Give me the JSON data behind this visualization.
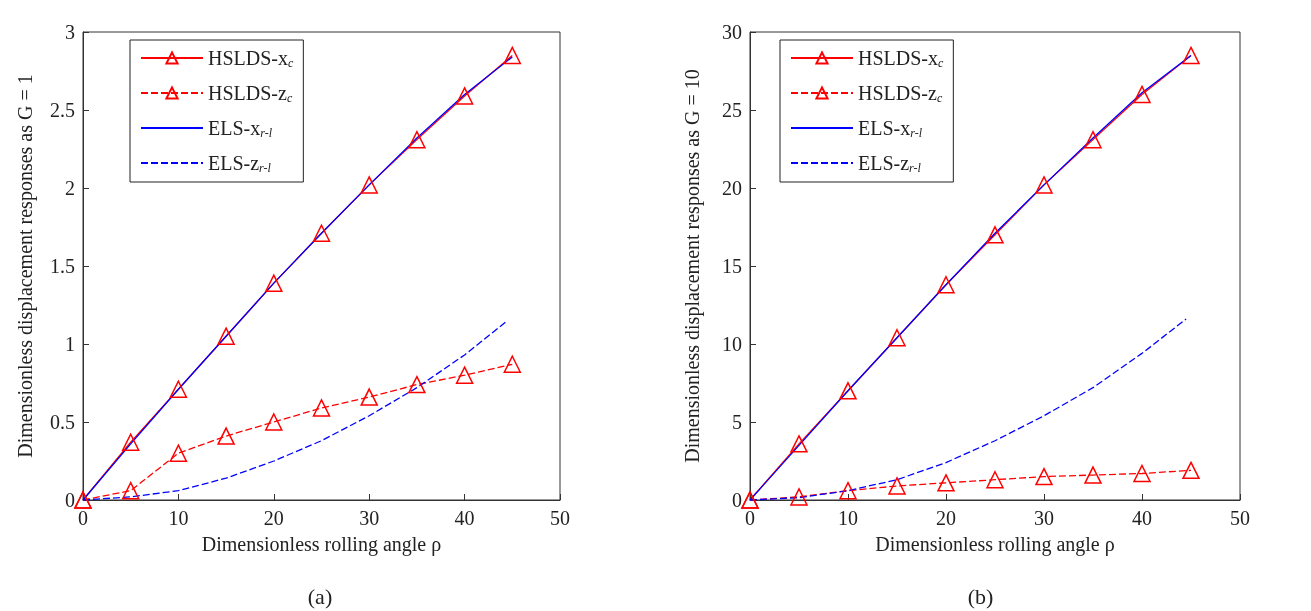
{
  "chart_data": [
    {
      "type": "line",
      "xlabel": "Dimensionless rolling angle ρ",
      "ylabel": "Dimensionless displacement responses as G = 1",
      "annotations": [
        "(a)"
      ],
      "xlim": [
        0,
        50
      ],
      "xticks": [
        0,
        10,
        20,
        30,
        40,
        50
      ],
      "ylim": [
        0,
        3
      ],
      "yticks": [
        0,
        0.5,
        1,
        1.5,
        2,
        2.5,
        3
      ],
      "grid": false,
      "legend": "top left",
      "series": [
        {
          "name": "HSLDS-x$_{c}$",
          "color": "#ff0000",
          "marker": "triangle",
          "line_style": "solid",
          "x": [
            0,
            5,
            10,
            15,
            20,
            25,
            30,
            35,
            40,
            45
          ],
          "values": [
            0,
            0.37,
            0.71,
            1.05,
            1.39,
            1.71,
            2.02,
            2.31,
            2.59,
            2.85
          ]
        },
        {
          "name": "HSLDS-z$_{c}$",
          "color": "#ff0000",
          "marker": "triangle",
          "line_style": "dashed",
          "x": [
            0,
            5,
            10,
            15,
            20,
            25,
            30,
            35,
            40,
            45
          ],
          "values": [
            0,
            0.06,
            0.3,
            0.41,
            0.5,
            0.59,
            0.66,
            0.74,
            0.8,
            0.87
          ]
        },
        {
          "name": "ELS-x$_{r-l}$",
          "color": "#0000ff",
          "marker": "none",
          "line_style": "solid",
          "x": [
            0,
            5,
            10,
            15,
            20,
            25,
            30,
            35,
            40,
            45
          ],
          "values": [
            0,
            0.36,
            0.71,
            1.05,
            1.39,
            1.71,
            2.02,
            2.32,
            2.6,
            2.84
          ]
        },
        {
          "name": "ELS-z$_{r-l}$",
          "color": "#0000ff",
          "marker": "none",
          "line_style": "dashed",
          "x": [
            0,
            5,
            10,
            15,
            20,
            25,
            30,
            35,
            40,
            44.5
          ],
          "values": [
            0,
            0.02,
            0.06,
            0.14,
            0.25,
            0.38,
            0.54,
            0.72,
            0.93,
            1.15
          ]
        }
      ]
    },
    {
      "type": "line",
      "xlabel": "Dimensionless rolling angle ρ",
      "ylabel": "Dimensionless displacement responses as G = 10",
      "annotations": [
        "(b)"
      ],
      "xlim": [
        0,
        50
      ],
      "xticks": [
        0,
        10,
        20,
        30,
        40,
        50
      ],
      "ylim": [
        0,
        30
      ],
      "yticks": [
        0,
        5,
        10,
        15,
        20,
        25,
        30
      ],
      "grid": false,
      "legend": "top left",
      "series": [
        {
          "name": "HSLDS-x$_{c}$",
          "color": "#ff0000",
          "marker": "triangle",
          "line_style": "solid",
          "x": [
            0,
            5,
            10,
            15,
            20,
            25,
            30,
            35,
            40,
            45
          ],
          "values": [
            0,
            3.6,
            7,
            10.4,
            13.8,
            17,
            20.2,
            23.1,
            26,
            28.5
          ]
        },
        {
          "name": "HSLDS-z$_{c}$",
          "color": "#ff0000",
          "marker": "triangle",
          "line_style": "dashed",
          "x": [
            0,
            5,
            10,
            15,
            20,
            25,
            30,
            35,
            40,
            45
          ],
          "values": [
            0,
            0.2,
            0.6,
            0.9,
            1.1,
            1.3,
            1.5,
            1.6,
            1.7,
            1.9
          ]
        },
        {
          "name": "ELS-x$_{r-l}$",
          "color": "#0000ff",
          "marker": "none",
          "line_style": "solid",
          "x": [
            0,
            5,
            10,
            15,
            20,
            25,
            30,
            35,
            40,
            45
          ],
          "values": [
            0,
            3.5,
            7,
            10.4,
            13.8,
            17.1,
            20.2,
            23.2,
            26.1,
            28.5
          ]
        },
        {
          "name": "ELS-z$_{r-l}$",
          "color": "#0000ff",
          "marker": "none",
          "line_style": "dashed",
          "x": [
            0,
            5,
            10,
            15,
            20,
            25,
            30,
            35,
            40,
            44.5
          ],
          "values": [
            0,
            0.15,
            0.6,
            1.3,
            2.4,
            3.8,
            5.4,
            7.2,
            9.4,
            11.6
          ]
        }
      ]
    }
  ]
}
